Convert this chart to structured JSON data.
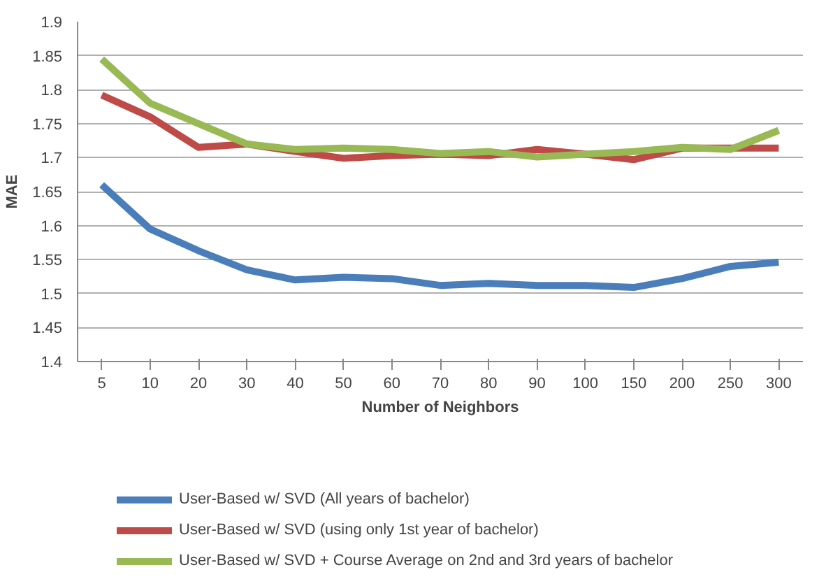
{
  "chart_data": {
    "type": "line",
    "xlabel": "Number of Neighbors",
    "ylabel": "MAE",
    "categories": [
      "5",
      "10",
      "20",
      "30",
      "40",
      "50",
      "60",
      "70",
      "80",
      "90",
      "100",
      "150",
      "200",
      "250",
      "300"
    ],
    "series": [
      {
        "name": "User-Based w/ SVD (All years of bachelor)",
        "color": "#4a7ebb",
        "values": [
          1.66,
          1.595,
          1.563,
          1.535,
          1.52,
          1.524,
          1.522,
          1.512,
          1.515,
          1.512,
          1.512,
          1.509,
          1.522,
          1.54,
          1.546
        ]
      },
      {
        "name": "User-Based w/ SVD (using only 1st year of bachelor)",
        "color": "#be4b48",
        "values": [
          1.792,
          1.76,
          1.715,
          1.72,
          1.709,
          1.699,
          1.703,
          1.705,
          1.703,
          1.712,
          1.705,
          1.697,
          1.714,
          1.714,
          1.714
        ]
      },
      {
        "name": "User-Based w/ SVD + Course Average on 2nd and 3rd years of bachelor",
        "color": "#98b954",
        "values": [
          1.845,
          1.78,
          1.75,
          1.72,
          1.712,
          1.714,
          1.712,
          1.706,
          1.709,
          1.701,
          1.705,
          1.709,
          1.715,
          1.712,
          1.74
        ]
      }
    ],
    "ylim": [
      1.4,
      1.9
    ],
    "yticks": [
      1.4,
      1.45,
      1.5,
      1.55,
      1.6,
      1.65,
      1.7,
      1.75,
      1.8,
      1.85,
      1.9
    ],
    "grid": "y",
    "legend": "bottom",
    "marker": "none",
    "line_style": "solid"
  }
}
